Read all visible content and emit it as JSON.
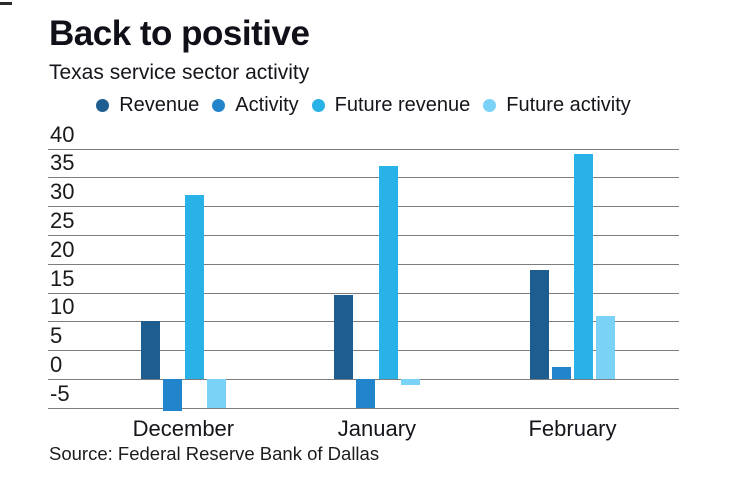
{
  "header": {
    "title": "Back to positive",
    "subtitle": "Texas service sector activity"
  },
  "source_note": "Source: Federal Reserve Bank of Dallas",
  "chart_data": {
    "type": "bar",
    "categories": [
      "December",
      "January",
      "February"
    ],
    "series": [
      {
        "name": "Revenue",
        "color": "#1e5d90",
        "values": [
          10,
          14.5,
          19
        ]
      },
      {
        "name": "Activity",
        "color": "#2285cc",
        "values": [
          -5.5,
          -5,
          2
        ]
      },
      {
        "name": "Future revenue",
        "color": "#29b2e7",
        "values": [
          32,
          37,
          39
        ]
      },
      {
        "name": "Future activity",
        "color": "#7ad2f6",
        "values": [
          -5,
          -1,
          11
        ]
      }
    ],
    "yticks": [
      40,
      35,
      30,
      25,
      20,
      15,
      10,
      5,
      0,
      -5
    ],
    "ylim": [
      -5,
      40
    ],
    "grid": "horizontal",
    "legend_position": "top",
    "gridline_color": "#7d7d7d",
    "text_color": "#15151c"
  }
}
